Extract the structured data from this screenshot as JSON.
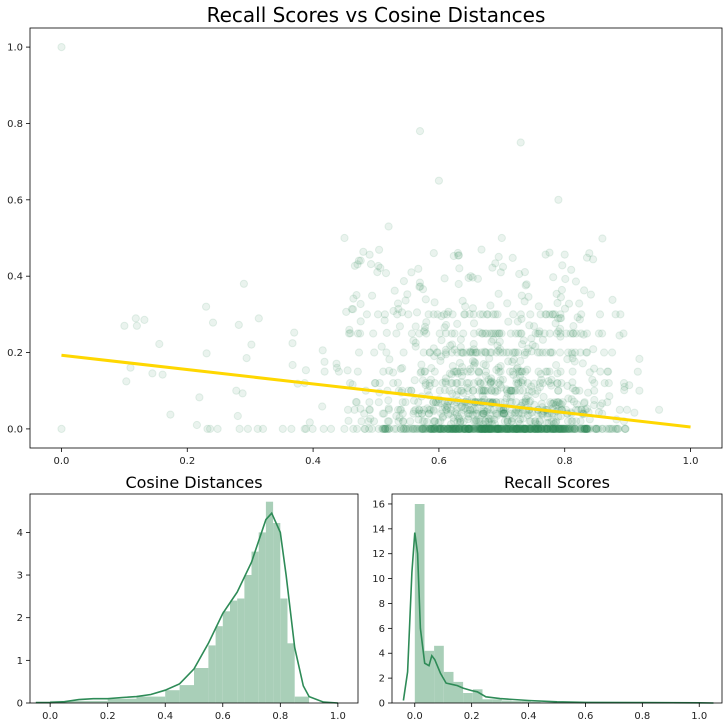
{
  "figure": {
    "background": "#ffffff"
  },
  "chart_data": [
    {
      "type": "scatter",
      "title": "Recall Scores vs Cosine Distances",
      "xlabel": "",
      "ylabel": "",
      "xlim": [
        -0.05,
        1.05
      ],
      "ylim": [
        -0.05,
        1.05
      ],
      "xticks": [
        "0.0",
        "0.2",
        "0.4",
        "0.6",
        "0.8",
        "1.0"
      ],
      "xtick_values": [
        0.0,
        0.2,
        0.4,
        0.6,
        0.8,
        1.0
      ],
      "yticks": [
        "0.0",
        "0.2",
        "0.4",
        "0.6",
        "0.8",
        "1.0"
      ],
      "ytick_values": [
        0.0,
        0.2,
        0.4,
        0.6,
        0.8,
        1.0
      ],
      "point_color": "#2e8b57",
      "point_alpha": 0.1,
      "grid": false,
      "notable_points": [
        {
          "x": 0.0,
          "y": 1.0
        },
        {
          "x": 0.0,
          "y": 0.0
        },
        {
          "x": 0.1,
          "y": 0.27
        },
        {
          "x": 0.12,
          "y": 0.27
        },
        {
          "x": 0.57,
          "y": 0.78
        },
        {
          "x": 0.73,
          "y": 0.75
        },
        {
          "x": 0.6,
          "y": 0.65
        },
        {
          "x": 0.79,
          "y": 0.6
        },
        {
          "x": 0.52,
          "y": 0.53
        },
        {
          "x": 0.45,
          "y": 0.5
        },
        {
          "x": 0.7,
          "y": 0.5
        },
        {
          "x": 0.29,
          "y": 0.38
        },
        {
          "x": 0.23,
          "y": 0.32
        },
        {
          "x": 0.95,
          "y": 0.05
        }
      ],
      "regression_line": {
        "color": "#ffd700",
        "x": [
          0.0,
          1.0
        ],
        "y": [
          0.193,
          0.005
        ]
      }
    },
    {
      "type": "histogram",
      "title": "Cosine Distances",
      "xlim": [
        -0.07,
        1.07
      ],
      "ylim": [
        0,
        4.9
      ],
      "xticks": [
        "0.0",
        "0.2",
        "0.4",
        "0.6",
        "0.8",
        "1.0"
      ],
      "xtick_values": [
        0.0,
        0.2,
        0.4,
        0.6,
        0.8,
        1.0
      ],
      "yticks": [
        "0",
        "1",
        "2",
        "3",
        "4"
      ],
      "ytick_values": [
        0,
        1,
        2,
        3,
        4
      ],
      "bar_color": "#a9cfb8",
      "kde_color": "#2e8b57",
      "bins": [
        {
          "x0": 0.0,
          "x1": 0.2,
          "value": 0.05
        },
        {
          "x0": 0.2,
          "x1": 0.3,
          "value": 0.1
        },
        {
          "x0": 0.3,
          "x1": 0.4,
          "value": 0.15
        },
        {
          "x0": 0.4,
          "x1": 0.45,
          "value": 0.3
        },
        {
          "x0": 0.45,
          "x1": 0.5,
          "value": 0.42
        },
        {
          "x0": 0.5,
          "x1": 0.55,
          "value": 0.82
        },
        {
          "x0": 0.55,
          "x1": 0.575,
          "value": 1.35
        },
        {
          "x0": 0.575,
          "x1": 0.6,
          "value": 1.8
        },
        {
          "x0": 0.6,
          "x1": 0.625,
          "value": 2.15
        },
        {
          "x0": 0.625,
          "x1": 0.65,
          "value": 2.4
        },
        {
          "x0": 0.65,
          "x1": 0.675,
          "value": 2.45
        },
        {
          "x0": 0.675,
          "x1": 0.7,
          "value": 3.0
        },
        {
          "x0": 0.7,
          "x1": 0.725,
          "value": 3.55
        },
        {
          "x0": 0.725,
          "x1": 0.75,
          "value": 4.0
        },
        {
          "x0": 0.75,
          "x1": 0.775,
          "value": 4.72
        },
        {
          "x0": 0.775,
          "x1": 0.8,
          "value": 4.22
        },
        {
          "x0": 0.8,
          "x1": 0.825,
          "value": 2.45
        },
        {
          "x0": 0.825,
          "x1": 0.85,
          "value": 1.4
        },
        {
          "x0": 0.85,
          "x1": 0.9,
          "value": 0.15
        }
      ],
      "kde": {
        "x": [
          -0.05,
          0.0,
          0.05,
          0.1,
          0.15,
          0.2,
          0.25,
          0.3,
          0.35,
          0.4,
          0.45,
          0.5,
          0.55,
          0.6,
          0.65,
          0.7,
          0.75,
          0.77,
          0.8,
          0.82,
          0.85,
          0.88,
          0.9,
          0.95,
          1.0
        ],
        "y": [
          0.01,
          0.01,
          0.03,
          0.08,
          0.1,
          0.1,
          0.13,
          0.15,
          0.2,
          0.3,
          0.45,
          0.8,
          1.4,
          2.1,
          2.6,
          3.3,
          4.3,
          4.45,
          4.0,
          3.0,
          1.3,
          0.4,
          0.15,
          0.02,
          0.0
        ]
      }
    },
    {
      "type": "histogram",
      "title": "Recall Scores",
      "xlim": [
        -0.08,
        1.08
      ],
      "ylim": [
        0,
        16.8
      ],
      "xticks": [
        "0.0",
        "0.2",
        "0.4",
        "0.6",
        "0.8",
        "1.0"
      ],
      "xtick_values": [
        0.0,
        0.2,
        0.4,
        0.6,
        0.8,
        1.0
      ],
      "yticks": [
        "0",
        "2",
        "4",
        "6",
        "8",
        "10",
        "12",
        "14",
        "16"
      ],
      "ytick_values": [
        0,
        2,
        4,
        6,
        8,
        10,
        12,
        14,
        16
      ],
      "bar_color": "#a9cfb8",
      "kde_color": "#2e8b57",
      "bins": [
        {
          "x0": 0.0,
          "x1": 0.034,
          "value": 16.0
        },
        {
          "x0": 0.034,
          "x1": 0.068,
          "value": 4.2
        },
        {
          "x0": 0.068,
          "x1": 0.102,
          "value": 4.6
        },
        {
          "x0": 0.102,
          "x1": 0.136,
          "value": 2.5
        },
        {
          "x0": 0.136,
          "x1": 0.17,
          "value": 1.7
        },
        {
          "x0": 0.17,
          "x1": 0.204,
          "value": 0.8
        },
        {
          "x0": 0.204,
          "x1": 0.238,
          "value": 1.1
        },
        {
          "x0": 0.238,
          "x1": 0.272,
          "value": 0.3
        },
        {
          "x0": 0.272,
          "x1": 0.306,
          "value": 0.3
        },
        {
          "x0": 0.306,
          "x1": 0.34,
          "value": 0.2
        },
        {
          "x0": 0.34,
          "x1": 0.374,
          "value": 0.15
        },
        {
          "x0": 0.374,
          "x1": 0.408,
          "value": 0.15
        },
        {
          "x0": 0.408,
          "x1": 0.442,
          "value": 0.1
        },
        {
          "x0": 0.442,
          "x1": 0.5,
          "value": 0.06
        }
      ],
      "kde": {
        "x": [
          -0.04,
          -0.025,
          -0.01,
          0.0,
          0.01,
          0.02,
          0.035,
          0.05,
          0.06,
          0.07,
          0.09,
          0.11,
          0.13,
          0.15,
          0.17,
          0.2,
          0.22,
          0.25,
          0.3,
          0.4,
          0.5,
          0.6,
          0.8,
          1.0,
          1.05
        ],
        "y": [
          0.2,
          2.5,
          10.5,
          13.7,
          12.0,
          6.0,
          3.2,
          3.0,
          3.8,
          3.5,
          2.4,
          1.6,
          1.5,
          1.4,
          1.2,
          1.0,
          0.9,
          0.5,
          0.35,
          0.2,
          0.1,
          0.05,
          0.03,
          0.02,
          0.0
        ]
      }
    }
  ]
}
